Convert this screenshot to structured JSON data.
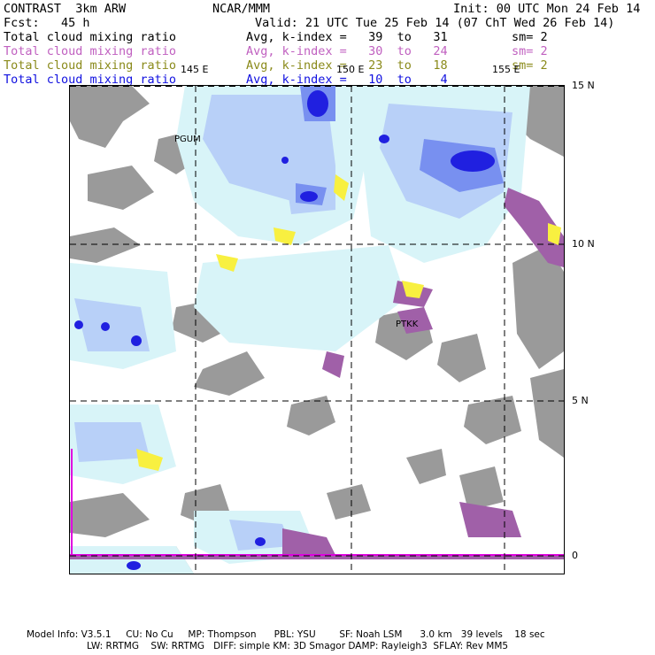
{
  "header": {
    "model": "CONTRAST  3km ARW",
    "center": "NCAR/MMM",
    "init": "Init: 00 UTC Mon 24 Feb 14",
    "fcst": "Fcst:   45 h",
    "valid": "Valid: 21 UTC Tue 25 Feb 14 (07 ChT Wed 26 Feb 14)"
  },
  "legend": [
    {
      "field": "Total cloud mixing ratio",
      "stat": "Avg, k-index =   39  to   31",
      "smooth": "sm= 2",
      "color": "#000000"
    },
    {
      "field": "Total cloud mixing ratio",
      "stat": "Avg, k-index =   30  to   24",
      "smooth": "sm= 2",
      "color": "#c060c0"
    },
    {
      "field": "Total cloud mixing ratio",
      "stat": "Avg, k-index =   23  to   18",
      "smooth": "sm= 2",
      "color": "#8a8a1a"
    },
    {
      "field": "Total cloud mixing ratio",
      "stat": "Avg, k-index =   10  to    4",
      "smooth": "",
      "color": "#1010e0"
    }
  ],
  "map": {
    "lon_labels": [
      "145 E",
      "150 E",
      "155 E"
    ],
    "lat_labels": [
      "15 N",
      "10 N",
      "5 N",
      "0"
    ],
    "stations": [
      "PGUM",
      "PTKK"
    ],
    "colors": {
      "gray": "#9a9a9a",
      "light_cyan": "#d8f4f8",
      "light_blue": "#b8d0f8",
      "mid_blue": "#7890f0",
      "deep_blue": "#2020e0",
      "magenta": "#a060a8",
      "yellow": "#f8f040",
      "equator_line": "#e000e0"
    }
  },
  "footer": {
    "line1": "Model Info: V3.5.1     CU: No Cu     MP: Thompson      PBL: YSU        SF: Noah LSM      3.0 km   39 levels    18 sec",
    "line2": "LW: RRTMG    SW: RRTMG   DIFF: simple KM: 3D Smagor DAMP: Rayleigh3  SFLAY: Rev MM5"
  }
}
